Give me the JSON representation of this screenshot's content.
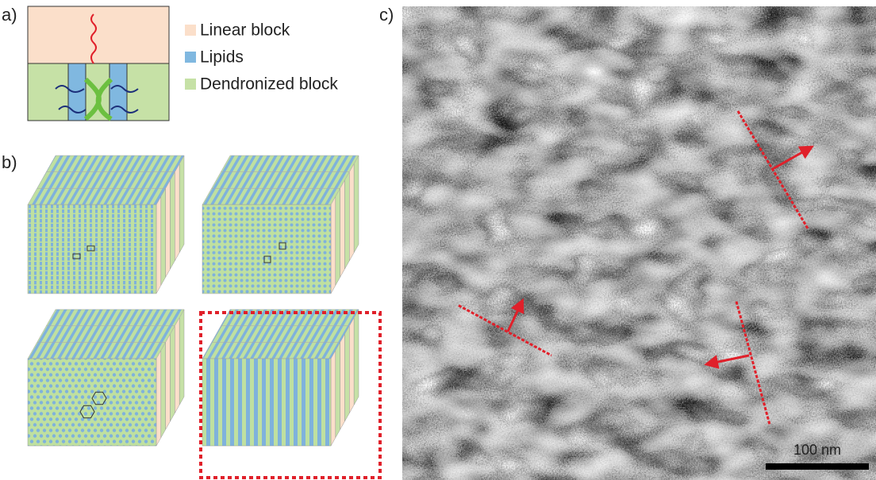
{
  "panels": {
    "a": {
      "label": "a)",
      "legend": [
        "Linear block",
        "Lipids",
        "Dendronized block"
      ]
    },
    "b": {
      "label": "b)"
    },
    "c": {
      "label": "c)",
      "scale_bar": "100 nm"
    }
  }
}
